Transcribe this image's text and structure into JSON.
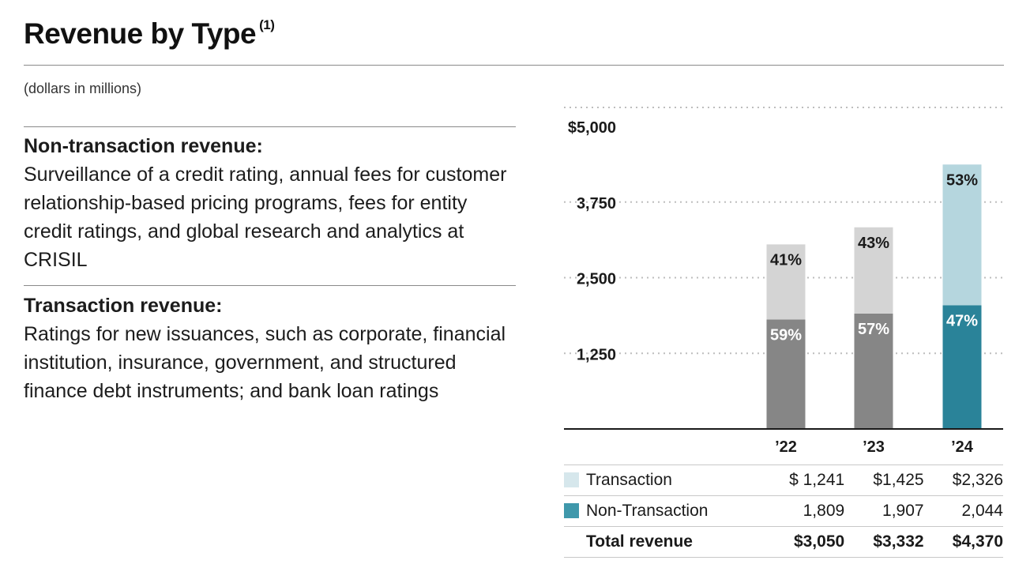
{
  "header": {
    "title": "Revenue by Type",
    "footnote_marker": "(1)",
    "subtitle": "(dollars in millions)"
  },
  "definitions": [
    {
      "heading": "Non-transaction revenue:",
      "body": "Surveillance of a credit rating, annual fees for customer relationship-based pricing programs, fees for entity credit ratings, and global research and analytics at CRISIL"
    },
    {
      "heading": "Transaction revenue:",
      "body": "Ratings for new issuances, such as corporate, financial institution, insurance, government, and structured finance debt instruments; and bank loan ratings"
    }
  ],
  "chart_data": {
    "type": "bar",
    "stacked": true,
    "title": "Revenue by Type",
    "ylabel": "dollars in millions",
    "ylim": [
      0,
      5000
    ],
    "yticks": [
      1250,
      2500,
      3750,
      5000
    ],
    "ytick_labels": [
      "1,250",
      "2,500",
      "3,750",
      "$5,000"
    ],
    "grid": true,
    "categories": [
      "'22",
      "'23",
      "'24"
    ],
    "category_labels": [
      "’22",
      "’23",
      "’24"
    ],
    "series": [
      {
        "name": "Non-Transaction",
        "values": [
          1809,
          1907,
          2044
        ],
        "share_labels": [
          "59%",
          "57%",
          "47%"
        ],
        "colors": [
          "#868686",
          "#868686",
          "#2a8399"
        ],
        "label_colors": [
          "#ffffff",
          "#ffffff",
          "#ffffff"
        ]
      },
      {
        "name": "Transaction",
        "values": [
          1241,
          1425,
          2326
        ],
        "share_labels": [
          "41%",
          "43%",
          "53%"
        ],
        "colors": [
          "#d4d4d4",
          "#d4d4d4",
          "#b5d6de"
        ],
        "label_colors": [
          "#1a1a1a",
          "#1a1a1a",
          "#1a1a1a"
        ]
      }
    ],
    "totals": [
      3050,
      3332,
      4370
    ]
  },
  "table": {
    "rows": [
      {
        "label": "Transaction",
        "swatch": "#d6e7ec",
        "values": [
          "$ 1,241",
          "$1,425",
          "$2,326"
        ]
      },
      {
        "label": "Non-Transaction",
        "swatch": "#3f98ab",
        "values": [
          "1,809",
          "1,907",
          "2,044"
        ]
      }
    ],
    "total_row": {
      "label": "Total revenue",
      "values": [
        "$3,050",
        "$3,332",
        "$4,370"
      ]
    }
  }
}
